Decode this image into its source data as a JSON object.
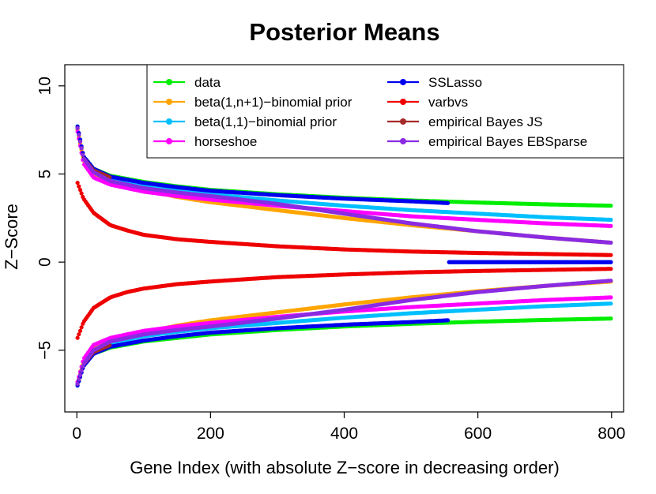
{
  "chart_data": {
    "type": "scatter",
    "title": "Posterior Means",
    "xlabel": "Gene Index (with absolute Z−score in decreasing order)",
    "ylabel": "Z−Score",
    "xlim": [
      -18,
      818
    ],
    "ylim": [
      -8.5,
      11.2
    ],
    "x_ticks": [
      0,
      200,
      400,
      600,
      800
    ],
    "x_tick_labels": [
      "0",
      "200",
      "400",
      "600",
      "800"
    ],
    "y_ticks": [
      -5,
      0,
      5,
      10
    ],
    "y_tick_labels": [
      "−5",
      "0",
      "5",
      "10"
    ],
    "legend_position": "top-right",
    "legend": [
      {
        "label": "data",
        "color": "#00ee00"
      },
      {
        "label": "beta(1,n+1)−binomial prior",
        "color": "#ffa500"
      },
      {
        "label": "beta(1,1)−binomial prior",
        "color": "#00bfff"
      },
      {
        "label": "horseshoe",
        "color": "#ff00ff"
      },
      {
        "label": "SSLasso",
        "color": "#0000ee"
      },
      {
        "label": "varbvs",
        "color": "#ee0000"
      },
      {
        "label": "empirical Bayes JS",
        "color": "#a52a2a"
      },
      {
        "label": "empirical Bayes EBSparse",
        "color": "#8a2be2"
      }
    ],
    "series_note": "Each series is plotted symmetrically: upper branch (positive Z) and lower branch (negative Z), sampled along the gene index.",
    "series": [
      {
        "name": "data",
        "color": "#00ee00",
        "x": [
          1,
          10,
          25,
          50,
          100,
          150,
          200,
          300,
          400,
          500,
          600,
          700,
          800
        ],
        "upper": [
          7.7,
          6.0,
          5.3,
          4.9,
          4.55,
          4.3,
          4.1,
          3.85,
          3.65,
          3.5,
          3.38,
          3.28,
          3.2
        ],
        "lower": [
          -7.0,
          -5.9,
          -5.2,
          -4.85,
          -4.5,
          -4.3,
          -4.1,
          -3.85,
          -3.65,
          -3.5,
          -3.38,
          -3.28,
          -3.2
        ]
      },
      {
        "name": "beta(1,n+1)−binomial prior",
        "color": "#ffa500",
        "x": [
          1,
          10,
          25,
          50,
          100,
          150,
          200,
          300,
          400,
          500,
          600,
          700,
          800
        ],
        "upper": [
          7.5,
          5.8,
          5.0,
          4.6,
          4.1,
          3.7,
          3.4,
          2.95,
          2.5,
          2.1,
          1.75,
          1.4,
          1.1
        ],
        "lower": [
          -6.9,
          -5.7,
          -4.9,
          -4.5,
          -4.0,
          -3.6,
          -3.3,
          -2.85,
          -2.4,
          -2.0,
          -1.65,
          -1.35,
          -1.1
        ]
      },
      {
        "name": "beta(1,1)−binomial prior",
        "color": "#00bfff",
        "x": [
          1,
          10,
          25,
          50,
          100,
          150,
          200,
          300,
          400,
          500,
          600,
          700,
          800
        ],
        "upper": [
          7.6,
          5.9,
          5.1,
          4.7,
          4.3,
          4.05,
          3.85,
          3.5,
          3.2,
          2.95,
          2.75,
          2.55,
          2.4
        ],
        "lower": [
          -6.9,
          -5.8,
          -5.0,
          -4.6,
          -4.2,
          -3.95,
          -3.75,
          -3.45,
          -3.15,
          -2.9,
          -2.7,
          -2.5,
          -2.35
        ]
      },
      {
        "name": "horseshoe",
        "color": "#ff00ff",
        "x": [
          1,
          10,
          25,
          50,
          100,
          150,
          200,
          300,
          400,
          500,
          600,
          700,
          800
        ],
        "upper": [
          7.4,
          5.6,
          4.8,
          4.4,
          4.0,
          3.75,
          3.55,
          3.2,
          2.9,
          2.6,
          2.4,
          2.2,
          2.05
        ],
        "lower": [
          -6.8,
          -5.5,
          -4.7,
          -4.3,
          -3.9,
          -3.65,
          -3.45,
          -3.1,
          -2.8,
          -2.55,
          -2.35,
          -2.15,
          -2.0
        ]
      },
      {
        "name": "SSLasso",
        "color": "#0000ee",
        "x": [
          1,
          10,
          25,
          50,
          100,
          150,
          200,
          300,
          400,
          500,
          555,
          556,
          600,
          700,
          800
        ],
        "upper": [
          7.7,
          6.0,
          5.3,
          4.85,
          4.5,
          4.25,
          4.05,
          3.8,
          3.6,
          3.45,
          3.35,
          0.0,
          0.0,
          0.0,
          0.0
        ],
        "lower": [
          -7.0,
          -5.9,
          -5.2,
          -4.8,
          -4.45,
          -4.2,
          -4.0,
          -3.75,
          -3.55,
          -3.4,
          -3.3,
          0.0,
          0.0,
          0.0,
          0.0
        ]
      },
      {
        "name": "varbvs",
        "color": "#ee0000",
        "x": [
          1,
          10,
          25,
          50,
          75,
          100,
          150,
          200,
          300,
          400,
          500,
          600,
          700,
          800
        ],
        "upper": [
          4.5,
          3.6,
          2.8,
          2.1,
          1.8,
          1.55,
          1.3,
          1.15,
          0.9,
          0.72,
          0.6,
          0.52,
          0.46,
          0.4
        ],
        "lower": [
          -4.3,
          -3.4,
          -2.6,
          -2.0,
          -1.7,
          -1.5,
          -1.25,
          -1.1,
          -0.85,
          -0.7,
          -0.58,
          -0.5,
          -0.44,
          -0.38
        ]
      },
      {
        "name": "empirical Bayes JS",
        "color": "#a52a2a",
        "x": [
          1,
          10,
          25,
          50
        ],
        "upper": [
          7.6,
          5.9,
          5.2,
          4.8
        ],
        "lower": [
          -6.9,
          -5.8,
          -5.1,
          -4.7
        ]
      },
      {
        "name": "empirical Bayes EBSparse",
        "color": "#8a2be2",
        "x": [
          1,
          10,
          25,
          50,
          100,
          150,
          200,
          300,
          400,
          500,
          600,
          700,
          800
        ],
        "upper": [
          7.6,
          5.9,
          5.1,
          4.6,
          4.2,
          3.95,
          3.75,
          3.3,
          2.75,
          2.2,
          1.75,
          1.4,
          1.1
        ],
        "lower": [
          -6.9,
          -5.8,
          -5.0,
          -4.5,
          -4.1,
          -3.85,
          -3.65,
          -3.2,
          -2.7,
          -2.15,
          -1.7,
          -1.35,
          -1.05
        ]
      }
    ]
  }
}
